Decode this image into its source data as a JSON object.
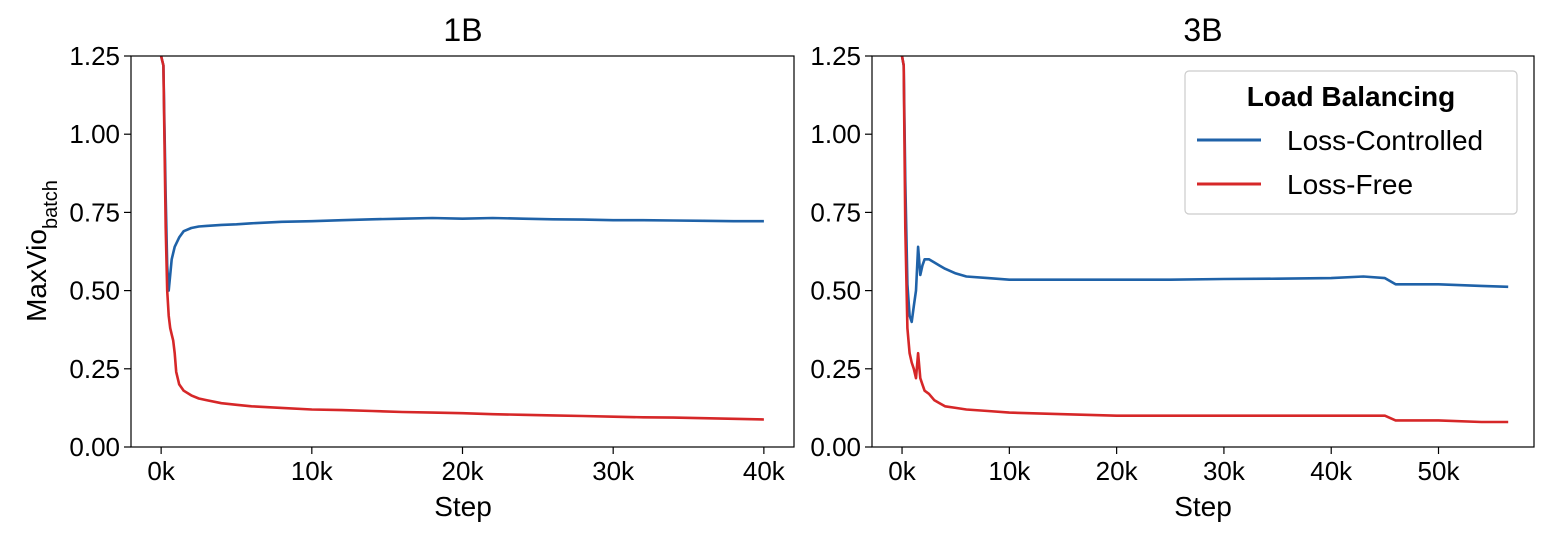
{
  "figure": {
    "ylabel_main": "MaxVio",
    "ylabel_sub": "batch",
    "colors": {
      "loss_controlled": "#1f62a8",
      "loss_free": "#d62728"
    }
  },
  "chart_data": [
    {
      "type": "line",
      "title": "1B",
      "xlabel": "Step",
      "ylabel": "MaxVio_batch",
      "xlim": [
        -2000,
        42000
      ],
      "ylim": [
        0,
        1.25
      ],
      "xticks": [
        0,
        10000,
        20000,
        30000,
        40000
      ],
      "xticklabels": [
        "0k",
        "10k",
        "20k",
        "30k",
        "40k"
      ],
      "yticks": [
        0,
        0.25,
        0.5,
        0.75,
        1.0,
        1.25
      ],
      "yticklabels": [
        "0.00",
        "0.25",
        "0.50",
        "0.75",
        "1.00",
        "1.25"
      ],
      "series": [
        {
          "name": "Loss-Controlled",
          "color": "#1f62a8",
          "x": [
            0,
            150,
            300,
            400,
            500,
            600,
            700,
            800,
            900,
            1000,
            1200,
            1500,
            2000,
            2500,
            3000,
            4000,
            5000,
            6000,
            8000,
            10000,
            12000,
            14000,
            16000,
            18000,
            20000,
            22000,
            24000,
            26000,
            28000,
            30000,
            32000,
            34000,
            36000,
            38000,
            40000
          ],
          "y": [
            1.25,
            1.22,
            0.8,
            0.58,
            0.5,
            0.55,
            0.6,
            0.62,
            0.64,
            0.65,
            0.67,
            0.69,
            0.7,
            0.705,
            0.707,
            0.71,
            0.712,
            0.715,
            0.72,
            0.722,
            0.725,
            0.728,
            0.73,
            0.732,
            0.73,
            0.732,
            0.73,
            0.728,
            0.727,
            0.725,
            0.725,
            0.724,
            0.723,
            0.722,
            0.722
          ]
        },
        {
          "name": "Loss-Free",
          "color": "#d62728",
          "x": [
            0,
            150,
            300,
            400,
            500,
            600,
            700,
            800,
            900,
            1000,
            1200,
            1500,
            2000,
            2500,
            3000,
            4000,
            5000,
            6000,
            8000,
            10000,
            12000,
            14000,
            16000,
            18000,
            20000,
            22000,
            24000,
            26000,
            28000,
            30000,
            32000,
            34000,
            36000,
            38000,
            40000
          ],
          "y": [
            1.25,
            1.22,
            0.7,
            0.5,
            0.42,
            0.38,
            0.36,
            0.34,
            0.3,
            0.24,
            0.2,
            0.18,
            0.165,
            0.155,
            0.15,
            0.14,
            0.135,
            0.13,
            0.125,
            0.12,
            0.118,
            0.115,
            0.112,
            0.11,
            0.108,
            0.105,
            0.103,
            0.101,
            0.099,
            0.097,
            0.095,
            0.094,
            0.092,
            0.09,
            0.088
          ]
        }
      ]
    },
    {
      "type": "line",
      "title": "3B",
      "xlabel": "Step",
      "ylabel": "",
      "xlim": [
        -2800,
        58900
      ],
      "ylim": [
        0,
        1.25
      ],
      "xticks": [
        0,
        10000,
        20000,
        30000,
        40000,
        50000
      ],
      "xticklabels": [
        "0k",
        "10k",
        "20k",
        "30k",
        "40k",
        "50k"
      ],
      "yticks": [
        0,
        0.25,
        0.5,
        0.75,
        1.0,
        1.25
      ],
      "yticklabels": [
        "0.00",
        "0.25",
        "0.50",
        "0.75",
        "1.00",
        "1.25"
      ],
      "legend": {
        "title": "Load Balancing",
        "location": "upper right"
      },
      "series": [
        {
          "name": "Loss-Controlled",
          "color": "#1f62a8",
          "x": [
            0,
            150,
            300,
            500,
            700,
            900,
            1100,
            1300,
            1500,
            1700,
            1900,
            2100,
            2500,
            3000,
            3500,
            4000,
            5000,
            6000,
            8000,
            10000,
            15000,
            20000,
            25000,
            30000,
            35000,
            40000,
            43000,
            45000,
            46000,
            50000,
            54000,
            56500
          ],
          "y": [
            1.25,
            1.22,
            0.85,
            0.52,
            0.42,
            0.4,
            0.45,
            0.5,
            0.64,
            0.55,
            0.58,
            0.6,
            0.6,
            0.59,
            0.58,
            0.57,
            0.555,
            0.545,
            0.54,
            0.535,
            0.535,
            0.535,
            0.535,
            0.537,
            0.538,
            0.54,
            0.545,
            0.54,
            0.52,
            0.52,
            0.515,
            0.512
          ]
        },
        {
          "name": "Loss-Free",
          "color": "#d62728",
          "x": [
            0,
            150,
            300,
            500,
            700,
            900,
            1100,
            1300,
            1500,
            1700,
            1900,
            2100,
            2500,
            3000,
            3500,
            4000,
            5000,
            6000,
            8000,
            10000,
            15000,
            20000,
            25000,
            30000,
            35000,
            40000,
            43000,
            45000,
            46000,
            50000,
            54000,
            56500
          ],
          "y": [
            1.25,
            1.22,
            0.7,
            0.38,
            0.3,
            0.27,
            0.25,
            0.22,
            0.3,
            0.22,
            0.2,
            0.18,
            0.17,
            0.15,
            0.14,
            0.13,
            0.125,
            0.12,
            0.115,
            0.11,
            0.105,
            0.1,
            0.1,
            0.1,
            0.1,
            0.1,
            0.1,
            0.1,
            0.085,
            0.085,
            0.08,
            0.08
          ]
        }
      ]
    }
  ]
}
